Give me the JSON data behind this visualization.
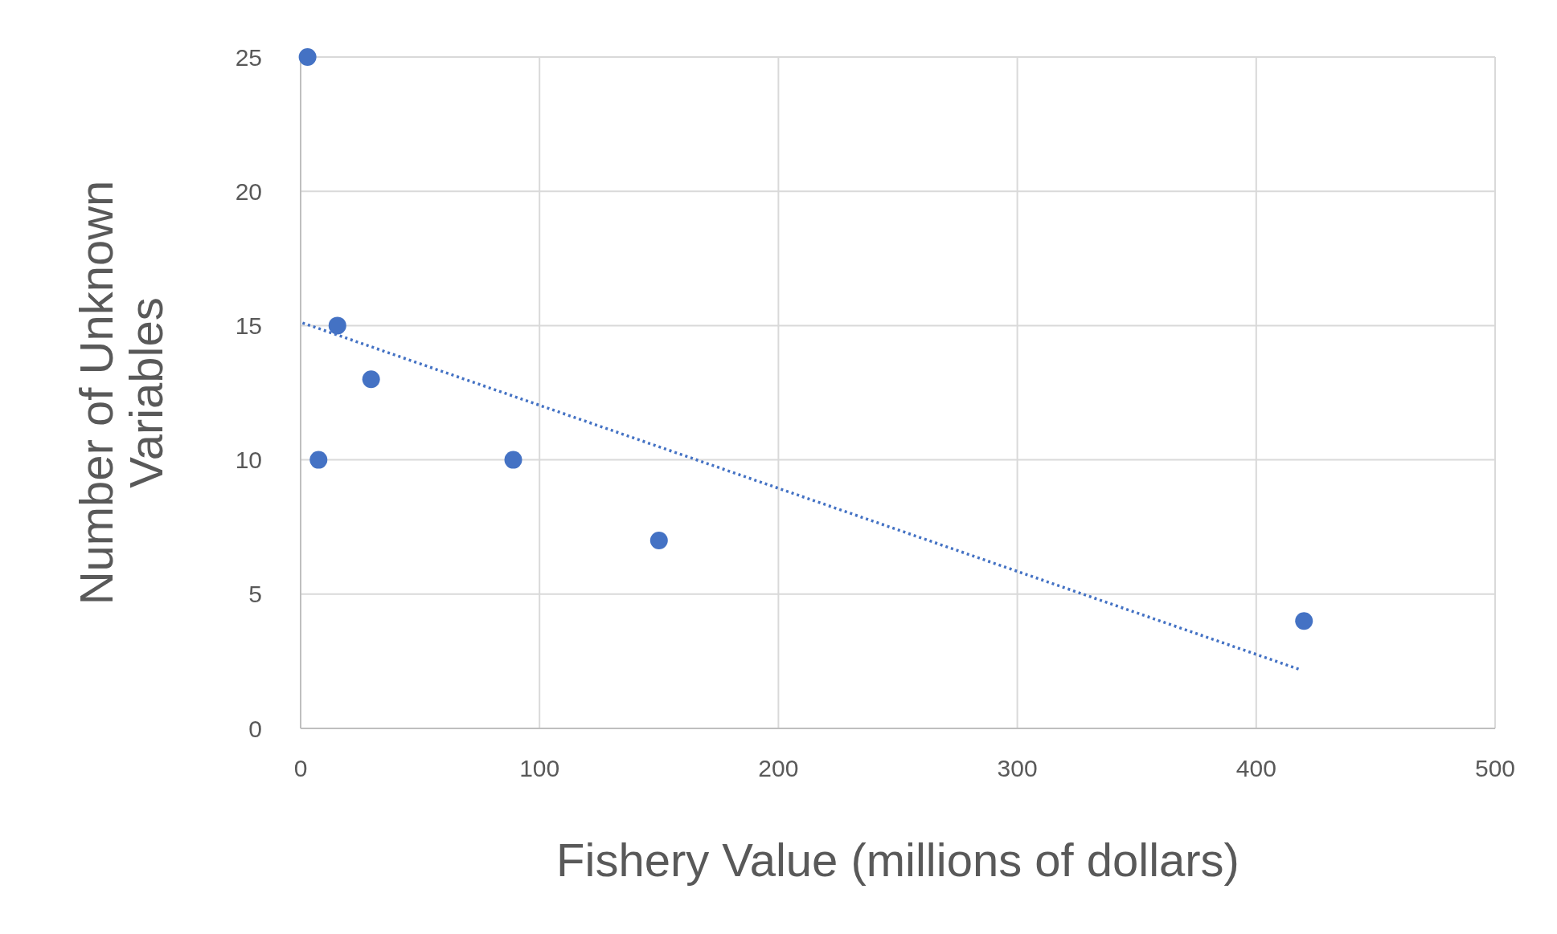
{
  "chart_data": {
    "type": "scatter",
    "xlabel": "Fishery Value (millions of dollars)",
    "ylabel": "Number of Unknown Variables",
    "xlim": [
      0,
      500
    ],
    "xticks": [
      0,
      100,
      200,
      300,
      400,
      500
    ],
    "ylim": [
      0,
      25
    ],
    "yticks": [
      0,
      5,
      10,
      15,
      20,
      25
    ],
    "grid": true,
    "marker": "circle",
    "series": [
      {
        "color": "#4472c4",
        "x": [
          2.9,
          15.4,
          29.5,
          7.5,
          89,
          150,
          420
        ],
        "values": [
          25,
          15,
          13,
          10,
          10,
          7,
          4
        ]
      },
      {
        "type": "line",
        "line_style": "dotted",
        "marker": "none",
        "color": "#4472c4",
        "x": [
          0.8,
          418
        ],
        "values": [
          15.1,
          2.2
        ]
      }
    ]
  }
}
